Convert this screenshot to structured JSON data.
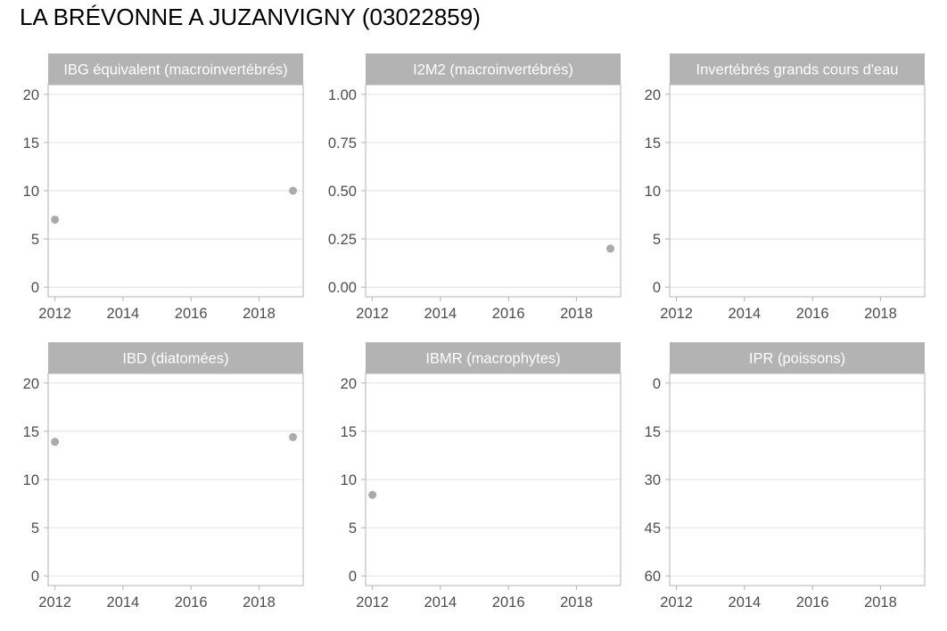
{
  "title": "LA BRÉVONNE A JUZANVIGNY (03022859)",
  "colors": {
    "strip": "#b3b3b3",
    "strip_text": "#ffffff",
    "point": "#aaaaaa",
    "grid": "#e0e0e0",
    "border": "#b3b3b3",
    "tick_text": "#4d4d4d"
  },
  "chart_data": [
    {
      "type": "scatter",
      "title": "IBG équivalent (macroinvertébrés)",
      "xlim": [
        2011.8,
        2019.3
      ],
      "ylim": [
        -1,
        21
      ],
      "xticks": [
        2012,
        2014,
        2016,
        2018
      ],
      "yticks": [
        0,
        5,
        10,
        15,
        20
      ],
      "ytick_labels": [
        "0",
        "5",
        "10",
        "15",
        "20"
      ],
      "y_reversed": false,
      "points": [
        {
          "x": 2012,
          "y": 7
        },
        {
          "x": 2019,
          "y": 10
        }
      ]
    },
    {
      "type": "scatter",
      "title": "I2M2 (macroinvertébrés)",
      "xlim": [
        2011.8,
        2019.3
      ],
      "ylim": [
        -0.05,
        1.05
      ],
      "xticks": [
        2012,
        2014,
        2016,
        2018
      ],
      "yticks": [
        0,
        0.25,
        0.5,
        0.75,
        1
      ],
      "ytick_labels": [
        "0.00",
        "0.25",
        "0.50",
        "0.75",
        "1.00"
      ],
      "y_reversed": false,
      "points": [
        {
          "x": 2019,
          "y": 0.2
        }
      ]
    },
    {
      "type": "scatter",
      "title": "Invertébrés grands cours d'eau",
      "xlim": [
        2011.8,
        2019.3
      ],
      "ylim": [
        -1,
        21
      ],
      "xticks": [
        2012,
        2014,
        2016,
        2018
      ],
      "yticks": [
        0,
        5,
        10,
        15,
        20
      ],
      "ytick_labels": [
        "0",
        "5",
        "10",
        "15",
        "20"
      ],
      "y_reversed": false,
      "points": []
    },
    {
      "type": "scatter",
      "title": "IBD (diatomées)",
      "xlim": [
        2011.8,
        2019.3
      ],
      "ylim": [
        -1,
        21
      ],
      "xticks": [
        2012,
        2014,
        2016,
        2018
      ],
      "yticks": [
        0,
        5,
        10,
        15,
        20
      ],
      "ytick_labels": [
        "0",
        "5",
        "10",
        "15",
        "20"
      ],
      "y_reversed": false,
      "points": [
        {
          "x": 2012,
          "y": 13.9
        },
        {
          "x": 2019,
          "y": 14.4
        }
      ]
    },
    {
      "type": "scatter",
      "title": "IBMR (macrophytes)",
      "xlim": [
        2011.8,
        2019.3
      ],
      "ylim": [
        -1,
        21
      ],
      "xticks": [
        2012,
        2014,
        2016,
        2018
      ],
      "yticks": [
        0,
        5,
        10,
        15,
        20
      ],
      "ytick_labels": [
        "0",
        "5",
        "10",
        "15",
        "20"
      ],
      "y_reversed": false,
      "points": [
        {
          "x": 2012,
          "y": 8.4
        }
      ]
    },
    {
      "type": "scatter",
      "title": "IPR (poissons)",
      "xlim": [
        2011.8,
        2019.3
      ],
      "ylim": [
        -3,
        63
      ],
      "xticks": [
        2012,
        2014,
        2016,
        2018
      ],
      "yticks": [
        0,
        15,
        30,
        45,
        60
      ],
      "ytick_labels": [
        "0",
        "15",
        "30",
        "45",
        "60"
      ],
      "y_reversed": true,
      "points": []
    }
  ]
}
